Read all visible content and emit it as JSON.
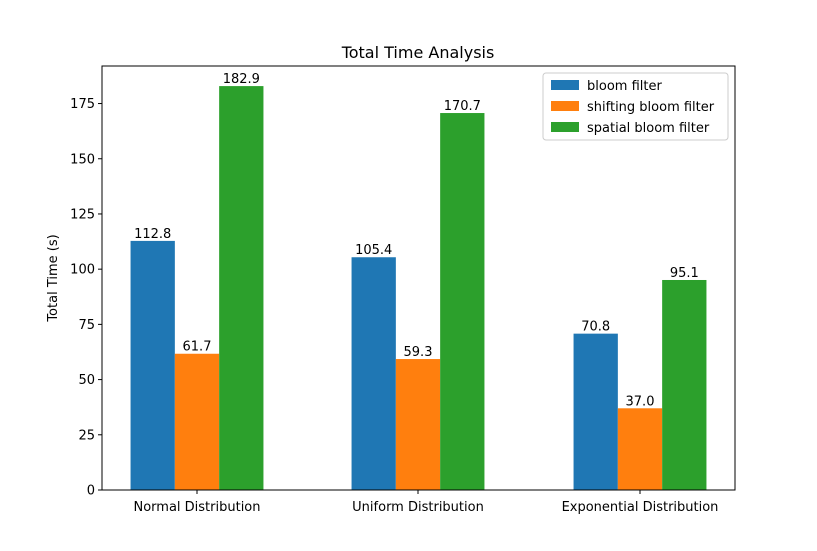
{
  "chart_data": {
    "type": "bar",
    "title": "Total Time Analysis",
    "xlabel": "",
    "ylabel": "Total Time (s)",
    "categories": [
      "Normal Distribution",
      "Uniform Distribution",
      "Exponential Distribution"
    ],
    "series": [
      {
        "name": "bloom filter",
        "color": "#1f77b4",
        "values": [
          112.8,
          105.4,
          70.8
        ]
      },
      {
        "name": "shifting bloom filter",
        "color": "#ff7f0e",
        "values": [
          61.7,
          59.3,
          37.0
        ]
      },
      {
        "name": "spatial bloom filter",
        "color": "#2ca02c",
        "values": [
          182.9,
          170.7,
          95.1
        ]
      }
    ],
    "ylim": [
      0,
      192
    ],
    "yticks": [
      0,
      25,
      50,
      75,
      100,
      125,
      150,
      175
    ],
    "grid": false,
    "legend_position": "top-right"
  }
}
